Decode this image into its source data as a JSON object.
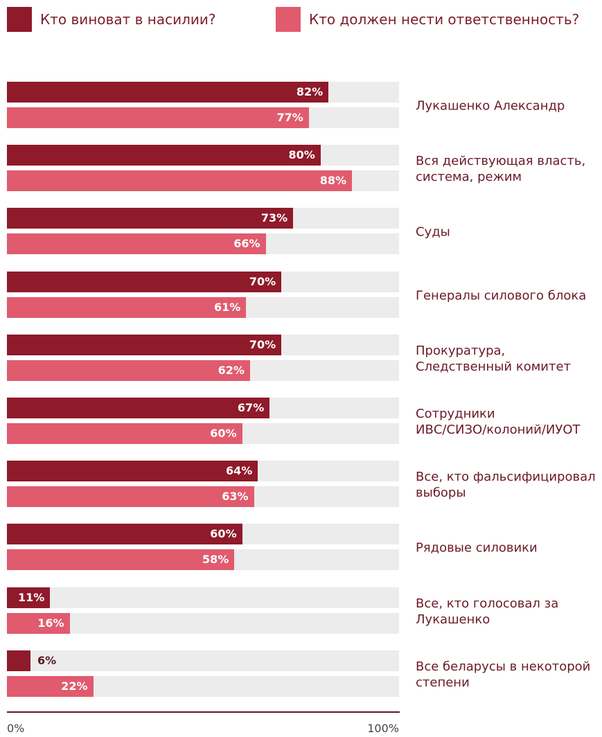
{
  "chart_data": {
    "type": "bar",
    "orientation": "horizontal",
    "series": [
      {
        "name": "Кто виноват в насилии?",
        "color": "#8f1a2a",
        "values": [
          82,
          80,
          73,
          70,
          70,
          67,
          64,
          60,
          11,
          6
        ],
        "value_labels": [
          "82%",
          "80%",
          "73%",
          "70%",
          "70%",
          "67%",
          "64%",
          "60%",
          "11%",
          "6%"
        ]
      },
      {
        "name": "Кто должен нести ответственность?",
        "color": "#e05b6e",
        "values": [
          77,
          88,
          66,
          61,
          62,
          60,
          63,
          58,
          16,
          22
        ],
        "value_labels": [
          "77%",
          "88%",
          "66%",
          "61%",
          "62%",
          "60%",
          "63%",
          "58%",
          "16%",
          "22%"
        ]
      }
    ],
    "categories": [
      "Лукашенко Александр",
      "Вся действующая власть,\nсистема, режим",
      "Суды",
      "Генералы силового блока",
      "Прокуратура,\nСледственный комитет",
      "Сотрудники\nИВС/СИЗО/колоний/ИУОТ",
      "Все, кто фальсифицировал\nвыборы",
      "Рядовые силовики",
      "Все, кто голосовал за\nЛукашенко",
      "Все беларусы в некоторой\nстепени"
    ],
    "xlim": [
      0,
      100
    ],
    "xticks": [
      {
        "value": 0,
        "label": "0%"
      },
      {
        "value": 100,
        "label": "100%"
      }
    ],
    "track_color": "#ececec"
  }
}
